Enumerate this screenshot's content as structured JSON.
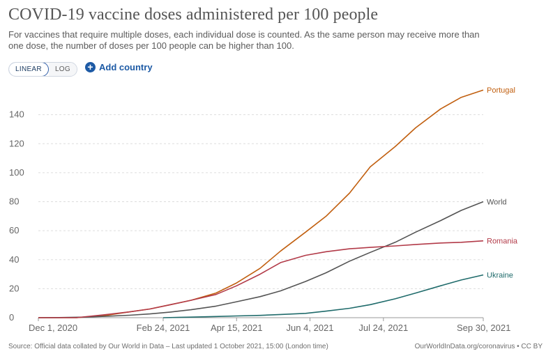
{
  "header": {
    "title": "COVID-19 vaccine doses administered per 100 people",
    "subtitle": "For vaccines that require multiple doses, each individual dose is counted. As the same person may receive more than one dose, the number of doses per 100 people can be higher than 100."
  },
  "controls": {
    "linear_label": "LINEAR",
    "log_label": "LOG",
    "add_country_label": "Add country",
    "active_scale": "LINEAR"
  },
  "footer": {
    "source": "Source: Official data collated by Our World in Data – Last updated 1 October 2021, 15:00 (London time)",
    "credit": "OurWorldInData.org/coronavirus • CC BY"
  },
  "chart_data": {
    "type": "line",
    "title": "COVID-19 vaccine doses administered per 100 people",
    "xlabel": "",
    "ylabel": "",
    "x_range": [
      "2020-12-01",
      "2021-09-30"
    ],
    "ylim": [
      0,
      160
    ],
    "y_ticks": [
      0,
      20,
      40,
      60,
      80,
      100,
      120,
      140
    ],
    "x_ticks": [
      {
        "date": "2020-12-01",
        "label": "Dec 1, 2020"
      },
      {
        "date": "2021-02-24",
        "label": "Feb 24, 2021"
      },
      {
        "date": "2021-04-15",
        "label": "Apr 15, 2021"
      },
      {
        "date": "2021-06-04",
        "label": "Jun 4, 2021"
      },
      {
        "date": "2021-07-24",
        "label": "Jul 24, 2021"
      },
      {
        "date": "2021-09-30",
        "label": "Sep 30, 2021"
      }
    ],
    "grid": "horizontal-dashed",
    "legend": "inline-right",
    "series": [
      {
        "name": "Portugal",
        "color": "#c15f0f",
        "points": [
          [
            "2020-12-01",
            0
          ],
          [
            "2020-12-27",
            0
          ],
          [
            "2021-01-15",
            1.5
          ],
          [
            "2021-02-01",
            4
          ],
          [
            "2021-02-15",
            6
          ],
          [
            "2021-03-01",
            9
          ],
          [
            "2021-03-15",
            12
          ],
          [
            "2021-04-01",
            17
          ],
          [
            "2021-04-15",
            24
          ],
          [
            "2021-05-01",
            34
          ],
          [
            "2021-05-15",
            46
          ],
          [
            "2021-06-01",
            59
          ],
          [
            "2021-06-15",
            70
          ],
          [
            "2021-07-01",
            86
          ],
          [
            "2021-07-15",
            104
          ],
          [
            "2021-08-01",
            118
          ],
          [
            "2021-08-15",
            131
          ],
          [
            "2021-09-01",
            144
          ],
          [
            "2021-09-15",
            152
          ],
          [
            "2021-09-30",
            157
          ]
        ]
      },
      {
        "name": "World",
        "color": "#545454",
        "points": [
          [
            "2020-12-01",
            0
          ],
          [
            "2020-12-15",
            0.1
          ],
          [
            "2021-01-01",
            0.4
          ],
          [
            "2021-01-15",
            0.9
          ],
          [
            "2021-02-01",
            1.7
          ],
          [
            "2021-02-15",
            2.6
          ],
          [
            "2021-03-01",
            3.9
          ],
          [
            "2021-03-15",
            5.5
          ],
          [
            "2021-04-01",
            8
          ],
          [
            "2021-04-15",
            11
          ],
          [
            "2021-05-01",
            14.5
          ],
          [
            "2021-05-15",
            18.5
          ],
          [
            "2021-06-01",
            25
          ],
          [
            "2021-06-15",
            31
          ],
          [
            "2021-07-01",
            39
          ],
          [
            "2021-07-15",
            45
          ],
          [
            "2021-08-01",
            52
          ],
          [
            "2021-08-15",
            59
          ],
          [
            "2021-09-01",
            67
          ],
          [
            "2021-09-15",
            74
          ],
          [
            "2021-09-30",
            80
          ]
        ]
      },
      {
        "name": "Romania",
        "color": "#b23a48",
        "points": [
          [
            "2020-12-01",
            0
          ],
          [
            "2020-12-27",
            0
          ],
          [
            "2021-01-15",
            2
          ],
          [
            "2021-02-01",
            4
          ],
          [
            "2021-02-15",
            6
          ],
          [
            "2021-03-01",
            9
          ],
          [
            "2021-03-15",
            12
          ],
          [
            "2021-04-01",
            16
          ],
          [
            "2021-04-15",
            22
          ],
          [
            "2021-05-01",
            30
          ],
          [
            "2021-05-15",
            38
          ],
          [
            "2021-06-01",
            43
          ],
          [
            "2021-06-15",
            45.5
          ],
          [
            "2021-07-01",
            47.5
          ],
          [
            "2021-07-15",
            48.5
          ],
          [
            "2021-08-01",
            49.5
          ],
          [
            "2021-08-15",
            50.5
          ],
          [
            "2021-09-01",
            51.5
          ],
          [
            "2021-09-15",
            52
          ],
          [
            "2021-09-30",
            53
          ]
        ]
      },
      {
        "name": "Ukraine",
        "color": "#1f6b6b",
        "points": [
          [
            "2021-02-24",
            0
          ],
          [
            "2021-03-15",
            0.4
          ],
          [
            "2021-04-01",
            0.8
          ],
          [
            "2021-04-15",
            1.2
          ],
          [
            "2021-05-01",
            1.6
          ],
          [
            "2021-05-15",
            2.2
          ],
          [
            "2021-06-01",
            3
          ],
          [
            "2021-06-15",
            4.5
          ],
          [
            "2021-07-01",
            6.5
          ],
          [
            "2021-07-15",
            9
          ],
          [
            "2021-08-01",
            13
          ],
          [
            "2021-08-15",
            17
          ],
          [
            "2021-09-01",
            22
          ],
          [
            "2021-09-15",
            26
          ],
          [
            "2021-09-30",
            29.5
          ]
        ]
      }
    ]
  }
}
